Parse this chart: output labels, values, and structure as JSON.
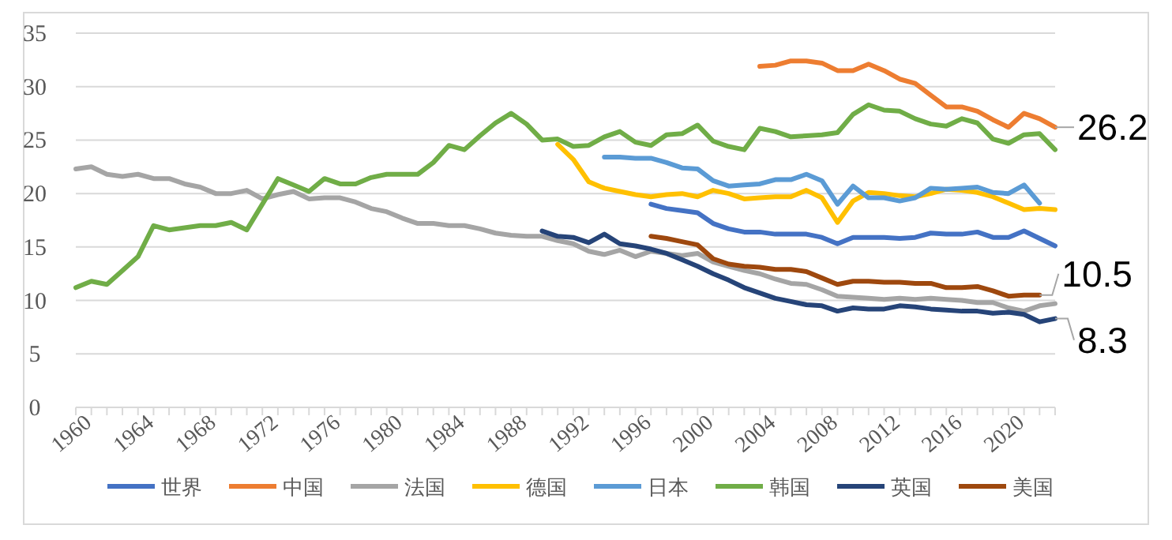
{
  "chart_data": {
    "type": "line",
    "xlim": [
      1960,
      2023
    ],
    "ylim": [
      0,
      35
    ],
    "yticks": [
      0,
      5,
      10,
      15,
      20,
      25,
      30,
      35
    ],
    "xticks": [
      1960,
      {
        "value": 1961,
        "label": null
      },
      {
        "value": 1962,
        "label": null
      },
      {
        "value": 1963,
        "label": null
      },
      1964,
      {
        "value": 1965,
        "label": null
      },
      {
        "value": 1966,
        "label": null
      },
      {
        "value": 1967,
        "label": null
      },
      1968,
      {
        "value": 1969,
        "label": null
      },
      {
        "value": 1970,
        "label": null
      },
      {
        "value": 1971,
        "label": null
      },
      1972,
      {
        "value": 1973,
        "label": null
      },
      {
        "value": 1974,
        "label": null
      },
      {
        "value": 1975,
        "label": null
      },
      1976,
      {
        "value": 1977,
        "label": null
      },
      {
        "value": 1978,
        "label": null
      },
      {
        "value": 1979,
        "label": null
      },
      1980,
      {
        "value": 1981,
        "label": null
      },
      {
        "value": 1982,
        "label": null
      },
      {
        "value": 1983,
        "label": null
      },
      1984,
      {
        "value": 1985,
        "label": null
      },
      {
        "value": 1986,
        "label": null
      },
      {
        "value": 1987,
        "label": null
      },
      1988,
      {
        "value": 1989,
        "label": null
      },
      {
        "value": 1990,
        "label": null
      },
      {
        "value": 1991,
        "label": null
      },
      1992,
      {
        "value": 1993,
        "label": null
      },
      {
        "value": 1994,
        "label": null
      },
      {
        "value": 1995,
        "label": null
      },
      1996,
      {
        "value": 1997,
        "label": null
      },
      {
        "value": 1998,
        "label": null
      },
      {
        "value": 1999,
        "label": null
      },
      2000,
      {
        "value": 2001,
        "label": null
      },
      {
        "value": 2002,
        "label": null
      },
      {
        "value": 2003,
        "label": null
      },
      2004,
      {
        "value": 2005,
        "label": null
      },
      {
        "value": 2006,
        "label": null
      },
      {
        "value": 2007,
        "label": null
      },
      2008,
      {
        "value": 2009,
        "label": null
      },
      {
        "value": 2010,
        "label": null
      },
      {
        "value": 2011,
        "label": null
      },
      2012,
      {
        "value": 2013,
        "label": null
      },
      {
        "value": 2014,
        "label": null
      },
      {
        "value": 2015,
        "label": null
      },
      2016,
      {
        "value": 2017,
        "label": null
      },
      {
        "value": 2018,
        "label": null
      },
      {
        "value": 2019,
        "label": null
      },
      2020,
      {
        "value": 2021,
        "label": null
      },
      {
        "value": 2022,
        "label": null
      },
      {
        "value": 2023,
        "label": null
      }
    ],
    "grid": "y",
    "legend": "bottom",
    "marker": "none",
    "line_style": "solid",
    "series": [
      {
        "name": "世界",
        "color": "#4472c4",
        "x": [
          1997,
          1998,
          1999,
          2000,
          2001,
          2002,
          2003,
          2004,
          2005,
          2006,
          2007,
          2008,
          2009,
          2010,
          2011,
          2012,
          2013,
          2014,
          2015,
          2016,
          2017,
          2018,
          2019,
          2020,
          2021,
          2022,
          2023
        ],
        "values": [
          19.0,
          18.6,
          18.4,
          18.2,
          17.2,
          16.7,
          16.4,
          16.4,
          16.2,
          16.2,
          16.2,
          15.9,
          15.3,
          15.9,
          15.9,
          15.9,
          15.8,
          15.9,
          16.3,
          16.2,
          16.2,
          16.4,
          15.9,
          15.9,
          16.5,
          15.8,
          15.1
        ]
      },
      {
        "name": "中国",
        "color": "#ed7d31",
        "x": [
          2004,
          2005,
          2006,
          2007,
          2008,
          2009,
          2010,
          2011,
          2012,
          2013,
          2014,
          2015,
          2016,
          2017,
          2018,
          2019,
          2020,
          2021,
          2022,
          2023
        ],
        "values": [
          31.9,
          32.0,
          32.4,
          32.4,
          32.2,
          31.5,
          31.5,
          32.1,
          31.5,
          30.7,
          30.3,
          29.2,
          28.1,
          28.1,
          27.7,
          26.9,
          26.2,
          27.5,
          27.0,
          26.2
        ],
        "value_labels": [
          null,
          null,
          null,
          null,
          null,
          null,
          null,
          null,
          null,
          null,
          null,
          null,
          null,
          null,
          null,
          null,
          null,
          null,
          null,
          "26.2"
        ]
      },
      {
        "name": "法国",
        "color": "#a5a5a5",
        "x": [
          1960,
          1961,
          1962,
          1963,
          1964,
          1965,
          1966,
          1967,
          1968,
          1969,
          1970,
          1971,
          1972,
          1973,
          1974,
          1975,
          1976,
          1977,
          1978,
          1979,
          1980,
          1981,
          1982,
          1983,
          1984,
          1985,
          1986,
          1987,
          1988,
          1989,
          1990,
          1991,
          1992,
          1993,
          1994,
          1995,
          1996,
          1997,
          1998,
          1999,
          2000,
          2001,
          2002,
          2003,
          2004,
          2005,
          2006,
          2007,
          2008,
          2009,
          2010,
          2011,
          2012,
          2013,
          2014,
          2015,
          2016,
          2017,
          2018,
          2019,
          2020,
          2021,
          2022,
          2023
        ],
        "values": [
          22.3,
          22.5,
          21.8,
          21.6,
          21.8,
          21.4,
          21.4,
          20.9,
          20.6,
          20.0,
          20.0,
          20.3,
          19.5,
          19.9,
          20.2,
          19.5,
          19.6,
          19.6,
          19.2,
          18.6,
          18.3,
          17.7,
          17.2,
          17.2,
          17.0,
          17.0,
          16.7,
          16.3,
          16.1,
          16.0,
          16.0,
          15.6,
          15.3,
          14.6,
          14.3,
          14.7,
          14.1,
          14.6,
          14.4,
          14.2,
          14.4,
          13.6,
          13.2,
          12.8,
          12.5,
          12.0,
          11.6,
          11.5,
          11.0,
          10.4,
          10.3,
          10.2,
          10.1,
          10.2,
          10.1,
          10.2,
          10.1,
          10.0,
          9.8,
          9.8,
          9.3,
          9.0,
          9.5,
          9.7
        ]
      },
      {
        "name": "德国",
        "color": "#ffc000",
        "x": [
          1991,
          1992,
          1993,
          1994,
          1995,
          1996,
          1997,
          1998,
          1999,
          2000,
          2001,
          2002,
          2003,
          2004,
          2005,
          2006,
          2007,
          2008,
          2009,
          2010,
          2011,
          2012,
          2013,
          2014,
          2015,
          2016,
          2017,
          2018,
          2019,
          2020,
          2021,
          2022,
          2023
        ],
        "values": [
          24.6,
          23.2,
          21.1,
          20.5,
          20.2,
          19.9,
          19.7,
          19.9,
          20.0,
          19.7,
          20.3,
          20.0,
          19.5,
          19.6,
          19.7,
          19.7,
          20.3,
          19.6,
          17.3,
          19.3,
          20.1,
          20.0,
          19.8,
          19.7,
          20.0,
          20.4,
          20.3,
          20.1,
          19.7,
          19.1,
          18.5,
          18.6,
          18.5
        ]
      },
      {
        "name": "日本",
        "color": "#5b9bd5",
        "x": [
          1994,
          1995,
          1996,
          1997,
          1998,
          1999,
          2000,
          2001,
          2002,
          2003,
          2004,
          2005,
          2006,
          2007,
          2008,
          2009,
          2010,
          2011,
          2012,
          2013,
          2014,
          2015,
          2016,
          2017,
          2018,
          2019,
          2020,
          2021,
          2022
        ],
        "values": [
          23.4,
          23.4,
          23.3,
          23.3,
          22.9,
          22.4,
          22.3,
          21.2,
          20.7,
          20.8,
          20.9,
          21.3,
          21.3,
          21.8,
          21.2,
          19.0,
          20.7,
          19.6,
          19.6,
          19.3,
          19.6,
          20.5,
          20.4,
          20.5,
          20.6,
          20.1,
          20.0,
          20.8,
          19.1
        ]
      },
      {
        "name": "韩国",
        "color": "#70ad47",
        "x": [
          1960,
          1961,
          1962,
          1963,
          1964,
          1965,
          1966,
          1967,
          1968,
          1969,
          1970,
          1971,
          1972,
          1973,
          1974,
          1975,
          1976,
          1977,
          1978,
          1979,
          1980,
          1981,
          1982,
          1983,
          1984,
          1985,
          1986,
          1987,
          1988,
          1989,
          1990,
          1991,
          1992,
          1993,
          1994,
          1995,
          1996,
          1997,
          1998,
          1999,
          2000,
          2001,
          2002,
          2003,
          2004,
          2005,
          2006,
          2007,
          2008,
          2009,
          2010,
          2011,
          2012,
          2013,
          2014,
          2015,
          2016,
          2017,
          2018,
          2019,
          2020,
          2021,
          2022,
          2023
        ],
        "values": [
          11.2,
          11.8,
          11.5,
          12.8,
          14.1,
          17.0,
          16.6,
          16.8,
          17.0,
          17.0,
          17.3,
          16.6,
          19.0,
          21.4,
          20.8,
          20.2,
          21.4,
          20.9,
          20.9,
          21.5,
          21.8,
          21.8,
          21.8,
          22.9,
          24.5,
          24.1,
          25.4,
          26.6,
          27.5,
          26.5,
          25.0,
          25.1,
          24.4,
          24.5,
          25.3,
          25.8,
          24.8,
          24.5,
          25.5,
          25.6,
          26.4,
          24.9,
          24.4,
          24.1,
          26.1,
          25.8,
          25.3,
          25.4,
          25.5,
          25.7,
          27.4,
          28.3,
          27.8,
          27.7,
          27.0,
          26.5,
          26.3,
          27.0,
          26.6,
          25.1,
          24.7,
          25.5,
          25.6,
          24.1
        ]
      },
      {
        "name": "英国",
        "color": "#264478",
        "x": [
          1990,
          1991,
          1992,
          1993,
          1994,
          1995,
          1996,
          1997,
          1998,
          1999,
          2000,
          2001,
          2002,
          2003,
          2004,
          2005,
          2006,
          2007,
          2008,
          2009,
          2010,
          2011,
          2012,
          2013,
          2014,
          2015,
          2016,
          2017,
          2018,
          2019,
          2020,
          2021,
          2022,
          2023
        ],
        "values": [
          16.5,
          16.0,
          15.9,
          15.4,
          16.2,
          15.3,
          15.1,
          14.8,
          14.4,
          13.8,
          13.2,
          12.5,
          11.9,
          11.2,
          10.7,
          10.2,
          9.9,
          9.6,
          9.5,
          9.0,
          9.3,
          9.2,
          9.2,
          9.5,
          9.4,
          9.2,
          9.1,
          9.0,
          9.0,
          8.8,
          8.9,
          8.7,
          8.0,
          8.3
        ],
        "value_labels": [
          null,
          null,
          null,
          null,
          null,
          null,
          null,
          null,
          null,
          null,
          null,
          null,
          null,
          null,
          null,
          null,
          null,
          null,
          null,
          null,
          null,
          null,
          null,
          null,
          null,
          null,
          null,
          null,
          null,
          null,
          null,
          null,
          null,
          "8.3"
        ]
      },
      {
        "name": "美国",
        "color": "#9e480e",
        "x": [
          1997,
          1998,
          1999,
          2000,
          2001,
          2002,
          2003,
          2004,
          2005,
          2006,
          2007,
          2008,
          2009,
          2010,
          2011,
          2012,
          2013,
          2014,
          2015,
          2016,
          2017,
          2018,
          2019,
          2020,
          2021,
          2022
        ],
        "values": [
          16.0,
          15.8,
          15.5,
          15.2,
          13.9,
          13.4,
          13.2,
          13.1,
          12.9,
          12.9,
          12.7,
          12.1,
          11.5,
          11.8,
          11.8,
          11.7,
          11.7,
          11.6,
          11.6,
          11.2,
          11.2,
          11.3,
          10.9,
          10.4,
          10.5,
          10.5
        ],
        "value_labels": [
          null,
          null,
          null,
          null,
          null,
          null,
          null,
          null,
          null,
          null,
          null,
          null,
          null,
          null,
          null,
          null,
          null,
          null,
          null,
          null,
          null,
          null,
          null,
          null,
          null,
          "10.5"
        ]
      }
    ]
  }
}
